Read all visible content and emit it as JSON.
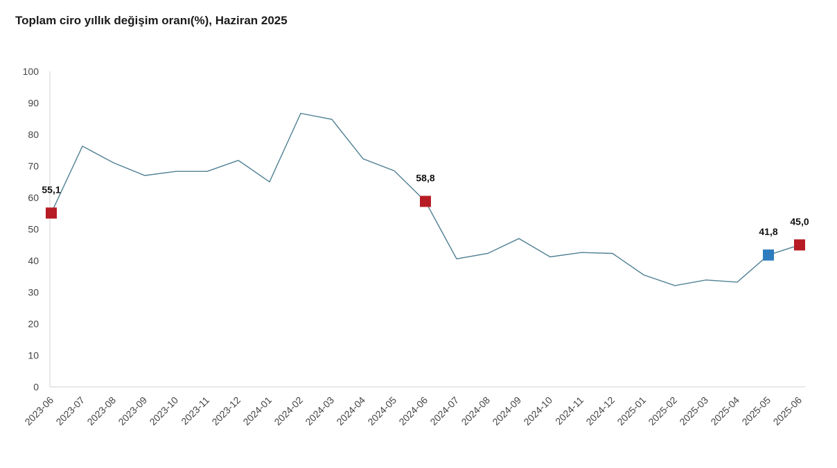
{
  "chart_data": {
    "type": "line",
    "title": "Toplam ciro yıllık değişim oranı(%), Haziran 2025",
    "xlabel": "",
    "ylabel": "",
    "ylim": [
      0,
      100
    ],
    "yticks": [
      0,
      10,
      20,
      30,
      40,
      50,
      60,
      70,
      80,
      90,
      100
    ],
    "grid": false,
    "legend": "none",
    "categories": [
      "2023-06",
      "2023-07",
      "2023-08",
      "2023-09",
      "2023-10",
      "2023-11",
      "2023-12",
      "2024-01",
      "2024-02",
      "2024-03",
      "2024-04",
      "2024-05",
      "2024-06",
      "2024-07",
      "2024-08",
      "2024-09",
      "2024-10",
      "2024-11",
      "2024-12",
      "2025-01",
      "2025-02",
      "2025-03",
      "2025-04",
      "2025-05",
      "2025-06"
    ],
    "series": [
      {
        "values": [
          55.1,
          76.3,
          71.0,
          67.0,
          68.3,
          68.3,
          71.8,
          65.0,
          86.7,
          84.8,
          72.3,
          68.5,
          58.8,
          40.6,
          42.3,
          47.0,
          41.2,
          42.6,
          42.3,
          35.5,
          32.1,
          33.9,
          33.2,
          41.8,
          45.0
        ],
        "color": "#4e7f92"
      }
    ],
    "annotations": [
      {
        "category": "2023-06",
        "value": 55.1,
        "label": "55,1",
        "color": "#b71c24"
      },
      {
        "category": "2024-06",
        "value": 58.8,
        "label": "58,8",
        "color": "#b71c24"
      },
      {
        "category": "2025-05",
        "value": 41.8,
        "label": "41,8",
        "color": "#2e7cbf"
      },
      {
        "category": "2025-06",
        "value": 45.0,
        "label": "45,0",
        "color": "#b71c24"
      }
    ]
  }
}
